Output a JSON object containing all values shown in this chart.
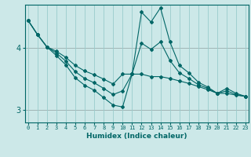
{
  "xlabel": "Humidex (Indice chaleur)",
  "ylabel": "",
  "background_color": "#cce8e8",
  "grid_color": "#99cccc",
  "line_color": "#006666",
  "red_line_color": "#cc4444",
  "x_ticks": [
    0,
    1,
    2,
    3,
    4,
    5,
    6,
    7,
    8,
    9,
    10,
    11,
    12,
    13,
    14,
    15,
    16,
    17,
    18,
    19,
    20,
    21,
    22,
    23
  ],
  "y_ticks": [
    3,
    4
  ],
  "ylim": [
    2.8,
    4.7
  ],
  "xlim": [
    -0.3,
    23.3
  ],
  "series": [
    {
      "x": [
        0,
        1,
        2,
        3,
        4,
        5,
        6,
        7,
        8,
        9,
        10,
        11,
        12,
        13,
        14,
        15,
        16,
        17,
        18,
        19,
        20,
        21,
        22,
        23
      ],
      "y": [
        4.45,
        4.22,
        4.02,
        3.88,
        3.73,
        3.52,
        3.4,
        3.32,
        3.2,
        3.08,
        3.05,
        3.58,
        4.58,
        4.42,
        4.65,
        4.1,
        3.72,
        3.6,
        3.45,
        3.37,
        3.27,
        3.35,
        3.27,
        3.22
      ]
    },
    {
      "x": [
        0,
        1,
        2,
        3,
        4,
        5,
        6,
        7,
        8,
        9,
        10,
        11,
        12,
        13,
        14,
        15,
        16,
        17,
        18,
        19,
        20,
        21,
        22,
        23
      ],
      "y": [
        4.45,
        4.22,
        4.02,
        3.95,
        3.85,
        3.72,
        3.63,
        3.57,
        3.5,
        3.42,
        3.58,
        3.58,
        3.58,
        3.54,
        3.54,
        3.51,
        3.47,
        3.43,
        3.38,
        3.33,
        3.27,
        3.27,
        3.24,
        3.22
      ]
    },
    {
      "x": [
        0,
        1,
        2,
        3,
        4,
        5,
        6,
        7,
        8,
        9,
        10,
        11,
        12,
        13,
        14,
        15,
        16,
        17,
        18,
        19,
        20,
        21,
        22,
        23
      ],
      "y": [
        4.45,
        4.22,
        4.02,
        3.92,
        3.79,
        3.62,
        3.51,
        3.44,
        3.35,
        3.25,
        3.31,
        3.58,
        4.08,
        3.98,
        4.1,
        3.8,
        3.6,
        3.51,
        3.41,
        3.35,
        3.27,
        3.31,
        3.25,
        3.22
      ]
    }
  ]
}
